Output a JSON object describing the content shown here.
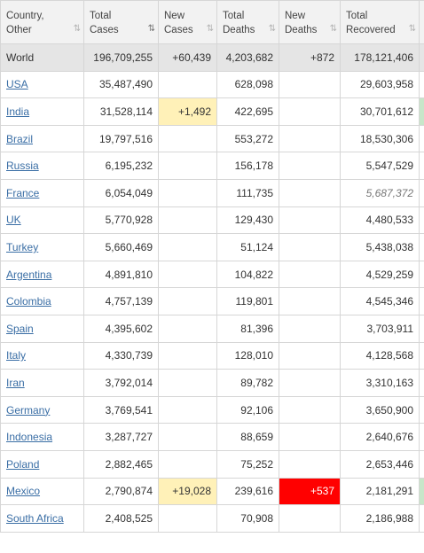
{
  "headers": [
    {
      "line1": "Country,",
      "line2": "Other",
      "sort": "⇅",
      "active": false
    },
    {
      "line1": "Total",
      "line2": "Cases",
      "sort": "⇅",
      "active": true
    },
    {
      "line1": "New",
      "line2": "Cases",
      "sort": "⇅",
      "active": false
    },
    {
      "line1": "Total",
      "line2": "Deaths",
      "sort": "⇅",
      "active": false
    },
    {
      "line1": "New",
      "line2": "Deaths",
      "sort": "⇅",
      "active": false
    },
    {
      "line1": "Total",
      "line2": "Recovered",
      "sort": "⇅",
      "active": false
    }
  ],
  "world": {
    "name": "World",
    "total_cases": "196,709,255",
    "new_cases": "+60,439",
    "total_deaths": "4,203,682",
    "new_deaths": "+872",
    "total_recovered": "178,121,406"
  },
  "rows": [
    {
      "name": "USA",
      "total_cases": "35,487,490",
      "new_cases": "",
      "total_deaths": "628,098",
      "new_deaths": "",
      "total_recovered": "29,603,958"
    },
    {
      "name": "India",
      "total_cases": "31,528,114",
      "new_cases": "+1,492",
      "total_deaths": "422,695",
      "new_deaths": "",
      "total_recovered": "30,701,612"
    },
    {
      "name": "Brazil",
      "total_cases": "19,797,516",
      "new_cases": "",
      "total_deaths": "553,272",
      "new_deaths": "",
      "total_recovered": "18,530,306"
    },
    {
      "name": "Russia",
      "total_cases": "6,195,232",
      "new_cases": "",
      "total_deaths": "156,178",
      "new_deaths": "",
      "total_recovered": "5,547,529"
    },
    {
      "name": "France",
      "total_cases": "6,054,049",
      "new_cases": "",
      "total_deaths": "111,735",
      "new_deaths": "",
      "total_recovered": "5,687,372"
    },
    {
      "name": "UK",
      "total_cases": "5,770,928",
      "new_cases": "",
      "total_deaths": "129,430",
      "new_deaths": "",
      "total_recovered": "4,480,533"
    },
    {
      "name": "Turkey",
      "total_cases": "5,660,469",
      "new_cases": "",
      "total_deaths": "51,124",
      "new_deaths": "",
      "total_recovered": "5,438,038"
    },
    {
      "name": "Argentina",
      "total_cases": "4,891,810",
      "new_cases": "",
      "total_deaths": "104,822",
      "new_deaths": "",
      "total_recovered": "4,529,259"
    },
    {
      "name": "Colombia",
      "total_cases": "4,757,139",
      "new_cases": "",
      "total_deaths": "119,801",
      "new_deaths": "",
      "total_recovered": "4,545,346"
    },
    {
      "name": "Spain",
      "total_cases": "4,395,602",
      "new_cases": "",
      "total_deaths": "81,396",
      "new_deaths": "",
      "total_recovered": "3,703,911"
    },
    {
      "name": "Italy",
      "total_cases": "4,330,739",
      "new_cases": "",
      "total_deaths": "128,010",
      "new_deaths": "",
      "total_recovered": "4,128,568"
    },
    {
      "name": "Iran",
      "total_cases": "3,792,014",
      "new_cases": "",
      "total_deaths": "89,782",
      "new_deaths": "",
      "total_recovered": "3,310,163"
    },
    {
      "name": "Germany",
      "total_cases": "3,769,541",
      "new_cases": "",
      "total_deaths": "92,106",
      "new_deaths": "",
      "total_recovered": "3,650,900"
    },
    {
      "name": "Indonesia",
      "total_cases": "3,287,727",
      "new_cases": "",
      "total_deaths": "88,659",
      "new_deaths": "",
      "total_recovered": "2,640,676"
    },
    {
      "name": "Poland",
      "total_cases": "2,882,465",
      "new_cases": "",
      "total_deaths": "75,252",
      "new_deaths": "",
      "total_recovered": "2,653,446"
    },
    {
      "name": "Mexico",
      "total_cases": "2,790,874",
      "new_cases": "+19,028",
      "total_deaths": "239,616",
      "new_deaths": "+537",
      "total_recovered": "2,181,291"
    },
    {
      "name": "South Africa",
      "total_cases": "2,408,525",
      "new_cases": "",
      "total_deaths": "70,908",
      "new_deaths": "",
      "total_recovered": "2,186,988"
    }
  ],
  "colors": {
    "header_bg": "#f2f2f2",
    "world_bg": "#e5e5e5",
    "link": "#3a6ea5",
    "new_cases_highlight": "#fff1b8",
    "new_deaths_highlight": "#ff0000",
    "border": "#d6d6d6",
    "edge_green": "#c8e6c9"
  }
}
